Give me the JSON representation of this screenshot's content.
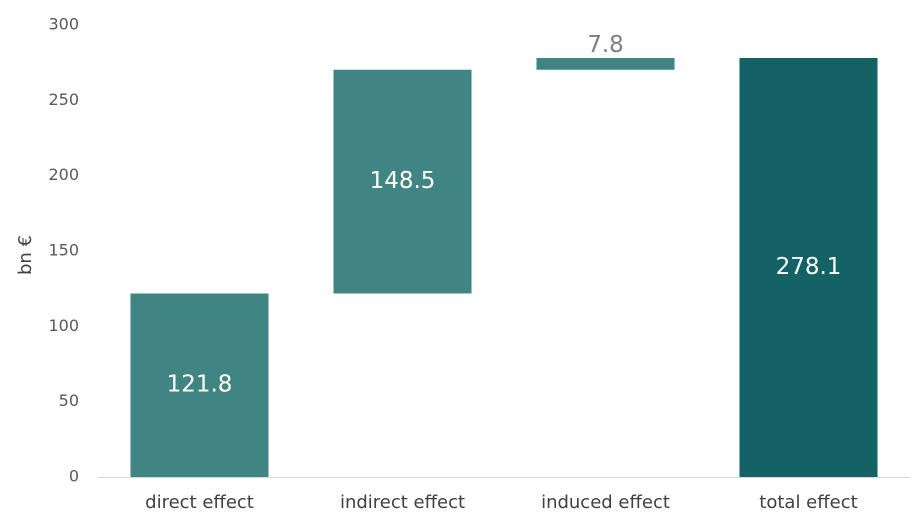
{
  "chart_data": {
    "type": "bar",
    "subtype": "waterfall",
    "ylabel": "bn €",
    "ylim": [
      0,
      300
    ],
    "ytick_step": 50,
    "yticks": [
      "0",
      "50",
      "100",
      "150",
      "200",
      "250",
      "300"
    ],
    "grid": false,
    "categories": [
      "direct effect",
      "indirect effect",
      "induced effect",
      "total effect"
    ],
    "values": [
      121.8,
      148.5,
      7.8,
      278.1
    ],
    "value_labels": [
      "121.8",
      "148.5",
      "7.8",
      "278.1"
    ],
    "bar_roles": [
      "increment",
      "increment",
      "increment",
      "total"
    ],
    "colors": {
      "increment": "#418484",
      "total": "#146266",
      "label_inside": "#ffffff",
      "label_outside": "#7f7f7f",
      "axis": "#d9d9d9"
    }
  }
}
